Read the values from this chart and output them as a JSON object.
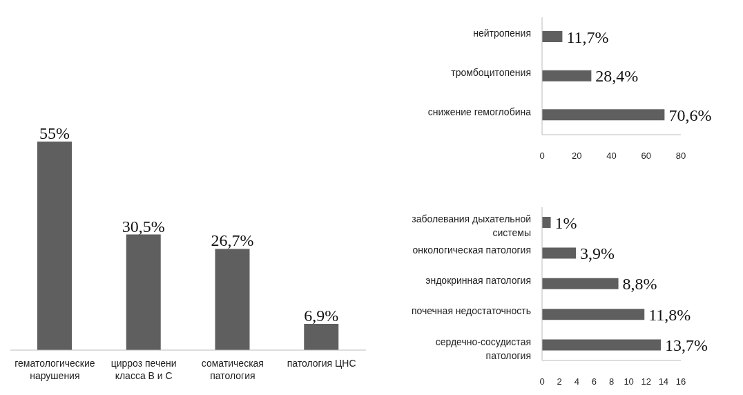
{
  "chart_data": [
    {
      "type": "bar",
      "categories": [
        "гематологические нарушения",
        "цирроз печени класса В и С",
        "соматическая патология",
        "патология ЦНС"
      ],
      "values": [
        55,
        30.5,
        26.7,
        6.9
      ],
      "value_labels": [
        "55%",
        "30,5%",
        "26,7%",
        "6,9%"
      ],
      "color": "#5f5f5f",
      "tick_labels": "x",
      "grid": false,
      "legend": false
    },
    {
      "type": "bar",
      "orientation": "horizontal",
      "categories": [
        "нейтропения",
        "тромбоцитопения",
        "снижение гемоглобина"
      ],
      "values": [
        11.7,
        28.4,
        70.6
      ],
      "value_labels": [
        "11,7%",
        "28,4%",
        "70,6%"
      ],
      "color": "#5f5f5f",
      "xlim": [
        0,
        80
      ],
      "xticks": [
        0,
        20,
        40,
        60,
        80
      ],
      "grid": false,
      "legend": false
    },
    {
      "type": "bar",
      "orientation": "horizontal",
      "categories": [
        "заболевания дыхательной системы",
        "онкологическая патология",
        "эндокринная патология",
        "почечная недостаточность",
        "сердечно-сосудистая патология"
      ],
      "values": [
        1,
        3.9,
        8.8,
        11.8,
        13.7
      ],
      "value_labels": [
        "1%",
        "3,9%",
        "8,8%",
        "11,8%",
        "13,7%"
      ],
      "color": "#5f5f5f",
      "xlim": [
        0,
        16
      ],
      "xticks": [
        0,
        2,
        4,
        6,
        8,
        10,
        12,
        14,
        16
      ],
      "grid": false,
      "legend": false
    }
  ]
}
